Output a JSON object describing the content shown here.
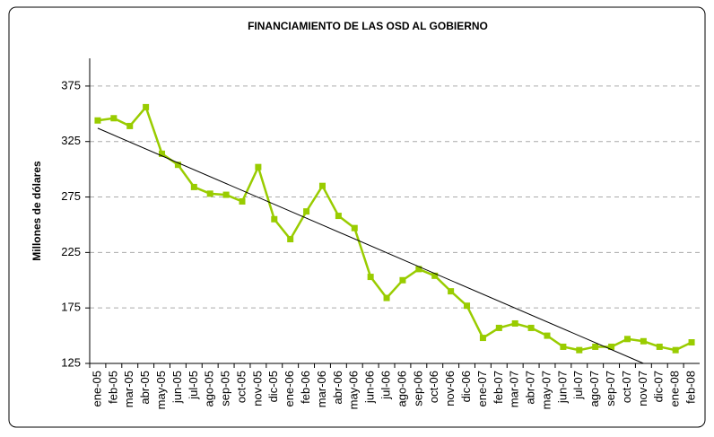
{
  "chart_data": {
    "type": "line",
    "title": "FINANCIAMIENTO DE LAS OSD AL GOBIERNO",
    "y_label": "Millones de dólares",
    "categories": [
      "ene-05",
      "feb-05",
      "mar-05",
      "abr-05",
      "may-05",
      "jun-05",
      "jul-05",
      "ago-05",
      "sep-05",
      "oct-05",
      "nov-05",
      "dic-05",
      "ene-06",
      "feb-06",
      "mar-06",
      "abr-06",
      "may-06",
      "jun-06",
      "jul-06",
      "ago-06",
      "sep-06",
      "oct-06",
      "nov-06",
      "dic-06",
      "ene-07",
      "feb-07",
      "mar-07",
      "abr-07",
      "may-07",
      "jun-07",
      "jul-07",
      "ago-07",
      "sep-07",
      "oct-07",
      "nov-07",
      "dic-07",
      "ene-08",
      "feb-08"
    ],
    "series": [
      {
        "color": "#99cc00",
        "values": [
          344,
          346,
          339,
          356,
          314,
          304,
          284,
          278,
          277,
          271,
          302,
          255,
          237,
          262,
          285,
          258,
          247,
          203,
          184,
          200,
          210,
          204,
          190,
          177,
          148,
          157,
          161,
          157,
          150,
          140,
          137,
          140,
          140,
          147,
          145,
          140,
          137,
          144
        ]
      }
    ],
    "trendline": {
      "color": "#000000",
      "x_from": "ene-05",
      "x_to": "nov-07",
      "from": 337,
      "to": 125
    },
    "ylim": [
      125,
      400
    ],
    "yticks": [
      125,
      175,
      225,
      275,
      325,
      375
    ],
    "grid": true
  }
}
